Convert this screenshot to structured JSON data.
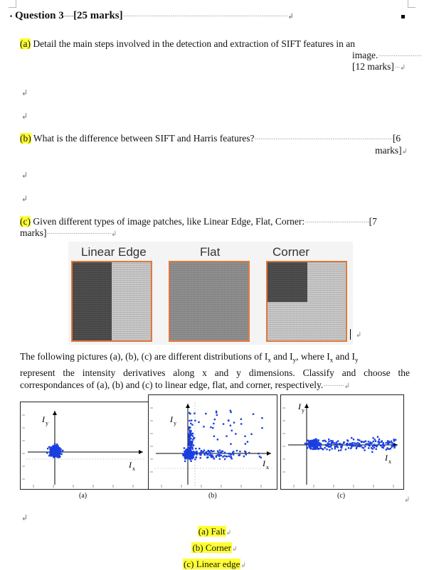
{
  "question": {
    "title": "Question 3",
    "marks": "[25 marks]"
  },
  "part_a": {
    "label": "(a)",
    "text": "Detail the main steps involved in the detection and extraction of SIFT features in an",
    "text2": "image.",
    "marks": "[12 marks]"
  },
  "part_b": {
    "label": "(b)",
    "text": "What is the difference between SIFT and Harris features?",
    "marks1": "[6",
    "marks2": "marks]"
  },
  "part_c": {
    "label": "(c)",
    "text": "Given different types of image patches, like Linear Edge, Flat, Corner:",
    "marks1": "[7",
    "marks2": "marks]"
  },
  "patches": {
    "linear_edge": "Linear Edge",
    "flat": "Flat",
    "corner": "Corner"
  },
  "follow": {
    "line1": "The following pictures (a), (b), (c) are different distributions of I",
    "line1_sub1": "x",
    "line1_mid": " and I",
    "line1_sub2": "y",
    "line1_end": ", where I",
    "line1_sub3": "x",
    "line1_end2": " and I",
    "line1_sub4": "y",
    "line2": "represent the intensity derivatives along x and y dimensions. Classify and choose the",
    "line3": "correspondances of (a), (b) and (c) to linear edge, flat, and corner, respectively."
  },
  "plots": {
    "y_label": "I",
    "y_sub": "y",
    "x_label": "I",
    "x_sub": "x",
    "captions": [
      "(a)",
      "(b)",
      "(c)"
    ]
  },
  "answers": [
    "(a) Falt",
    "(b) Corner",
    "(c) Linear edge"
  ],
  "colors": {
    "highlight": "#ffff33",
    "patch_border": "#e07a3d",
    "scatter": "#1a3fe0"
  }
}
